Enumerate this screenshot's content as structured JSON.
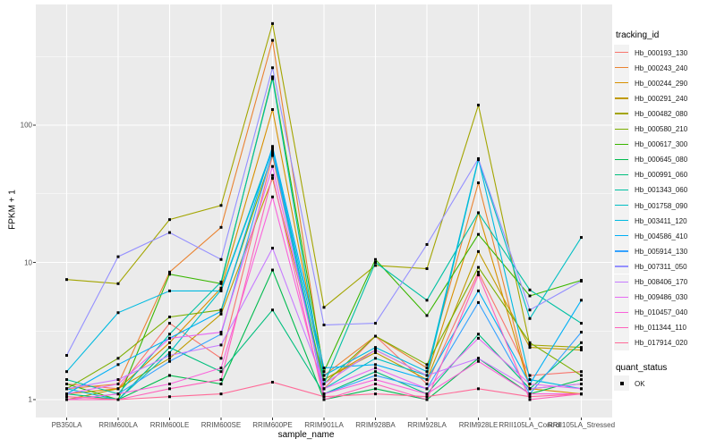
{
  "figure": {
    "x_axis_title": "sample_name",
    "y_axis_title": "FPKM + 1",
    "colors": {
      "panel_bg": "#ebebeb",
      "grid": "#ffffff",
      "axis_text": "#4d4d4d",
      "tick_mark": "#333333",
      "point": "#000000",
      "legend_key_bg": "#f2f2f2"
    }
  },
  "legend": {
    "tracking_title": "tracking_id",
    "quant_title": "quant_status",
    "quant_items": [
      {
        "label": "OK",
        "marker": "black-square"
      }
    ]
  },
  "chart_data": {
    "type": "line",
    "title": "",
    "xlabel": "sample_name",
    "ylabel": "FPKM + 1",
    "y_scale": "log10",
    "y_ticks": [
      1,
      10,
      100
    ],
    "y_tick_labels": [
      "1",
      "10",
      "100"
    ],
    "y_minor_ticks": [
      3.1623,
      31.623,
      316.23
    ],
    "ylim_log": [
      0.74,
      760
    ],
    "grid": true,
    "legend_position": "right",
    "point_marker": "black-square",
    "categories": [
      "PB350LA",
      "RRIM600LA",
      "RRIM600LE",
      "RRIM600SE",
      "RRIM600PE",
      "RRIM901LA",
      "RRIM928BA",
      "RRIM928LA",
      "RRIM928LE",
      "RRII105LA_Control",
      "RRII105LA_Stressed"
    ],
    "series": [
      {
        "name": "Hb_000193_130",
        "color": "#F8766D",
        "values": [
          1.3,
          1.2,
          3.6,
          2.0,
          60,
          1.2,
          2.9,
          1.3,
          8.5,
          1.5,
          1.6
        ]
      },
      {
        "name": "Hb_000243_240",
        "color": "#EA8331",
        "values": [
          1.2,
          1.3,
          8.5,
          18,
          415,
          1.5,
          2.9,
          1.7,
          38,
          1.2,
          1.3
        ]
      },
      {
        "name": "Hb_000244_290",
        "color": "#D89000",
        "values": [
          1.1,
          1.2,
          2.6,
          6.5,
          130,
          1.4,
          2.3,
          1.5,
          23,
          1.2,
          1.1
        ]
      },
      {
        "name": "Hb_000291_240",
        "color": "#C09B00",
        "values": [
          1.0,
          1.2,
          2.0,
          4.2,
          41,
          1.4,
          2.2,
          1.4,
          12,
          2.4,
          2.3
        ]
      },
      {
        "name": "Hb_000482_080",
        "color": "#A3A500",
        "values": [
          7.5,
          7.0,
          20.5,
          26,
          550,
          4.7,
          9.5,
          9.0,
          140,
          2.5,
          2.4
        ]
      },
      {
        "name": "Hb_000580_210",
        "color": "#7CAE00",
        "values": [
          1.2,
          2.0,
          4.0,
          4.5,
          62,
          1.3,
          2.9,
          1.8,
          9.2,
          2.6,
          1.5
        ]
      },
      {
        "name": "Hb_000617_300",
        "color": "#39B600",
        "values": [
          1.3,
          1.0,
          8.2,
          7.0,
          225,
          1.6,
          10.5,
          4.1,
          16,
          5.7,
          7.4
        ]
      },
      {
        "name": "Hb_000645_080",
        "color": "#00BB4E",
        "values": [
          1.0,
          1.0,
          1.5,
          1.3,
          8.8,
          1.0,
          1.2,
          1.0,
          2.0,
          1.1,
          1.4
        ]
      },
      {
        "name": "Hb_000991_060",
        "color": "#00BF7D",
        "values": [
          1.1,
          1.0,
          2.4,
          1.6,
          4.5,
          1.1,
          1.6,
          1.1,
          3.0,
          1.2,
          2.6
        ]
      },
      {
        "name": "Hb_001343_060",
        "color": "#00C1A3",
        "values": [
          1.4,
          1.1,
          3.0,
          7.2,
          218,
          1.3,
          10.0,
          5.3,
          23,
          6.3,
          3.6
        ]
      },
      {
        "name": "Hb_001758_090",
        "color": "#00BFC4",
        "values": [
          1.2,
          1.0,
          2.2,
          6.3,
          68,
          1.2,
          2.0,
          1.5,
          56,
          3.9,
          15.2
        ]
      },
      {
        "name": "Hb_003411_120",
        "color": "#00BAE0",
        "values": [
          1.6,
          4.3,
          6.2,
          6.2,
          66,
          1.5,
          2.4,
          1.6,
          57,
          1.4,
          1.2
        ]
      },
      {
        "name": "Hb_004586_410",
        "color": "#00B0F6",
        "values": [
          1.1,
          1.8,
          2.8,
          4.4,
          70,
          1.7,
          1.8,
          1.4,
          6.2,
          1.3,
          5.3
        ]
      },
      {
        "name": "Hb_005914_130",
        "color": "#35A2FF",
        "values": [
          1.0,
          1.1,
          1.9,
          3.0,
          64,
          1.1,
          1.5,
          1.2,
          5.1,
          1.1,
          3.1
        ]
      },
      {
        "name": "Hb_007311_050",
        "color": "#9590FF",
        "values": [
          2.1,
          11,
          16.5,
          10.5,
          262,
          3.5,
          3.6,
          13.5,
          57,
          4.5,
          7.3
        ]
      },
      {
        "name": "Hb_008406_170",
        "color": "#C77CFF",
        "values": [
          1.2,
          1.4,
          2.1,
          2.5,
          12.7,
          1.3,
          2.3,
          1.5,
          2.0,
          1.2,
          1.3
        ]
      },
      {
        "name": "Hb_009486_030",
        "color": "#E76BF3",
        "values": [
          1.1,
          1.3,
          2.8,
          3.1,
          50,
          1.2,
          1.7,
          1.2,
          2.8,
          1.3,
          1.2
        ]
      },
      {
        "name": "Hb_010457_040",
        "color": "#FA62DB",
        "values": [
          1.0,
          1.1,
          1.3,
          1.7,
          30,
          1.1,
          1.4,
          1.1,
          1.9,
          1.1,
          1.1
        ]
      },
      {
        "name": "Hb_011344_110",
        "color": "#FF62BC",
        "values": [
          1.0,
          1.0,
          1.2,
          1.4,
          43,
          1.0,
          1.3,
          1.0,
          8.1,
          1.0,
          1.1
        ]
      },
      {
        "name": "Hb_017914_020",
        "color": "#FF6A98",
        "values": [
          1.05,
          1.0,
          1.05,
          1.1,
          1.34,
          1.05,
          1.1,
          1.05,
          1.2,
          1.05,
          1.1
        ]
      }
    ]
  }
}
